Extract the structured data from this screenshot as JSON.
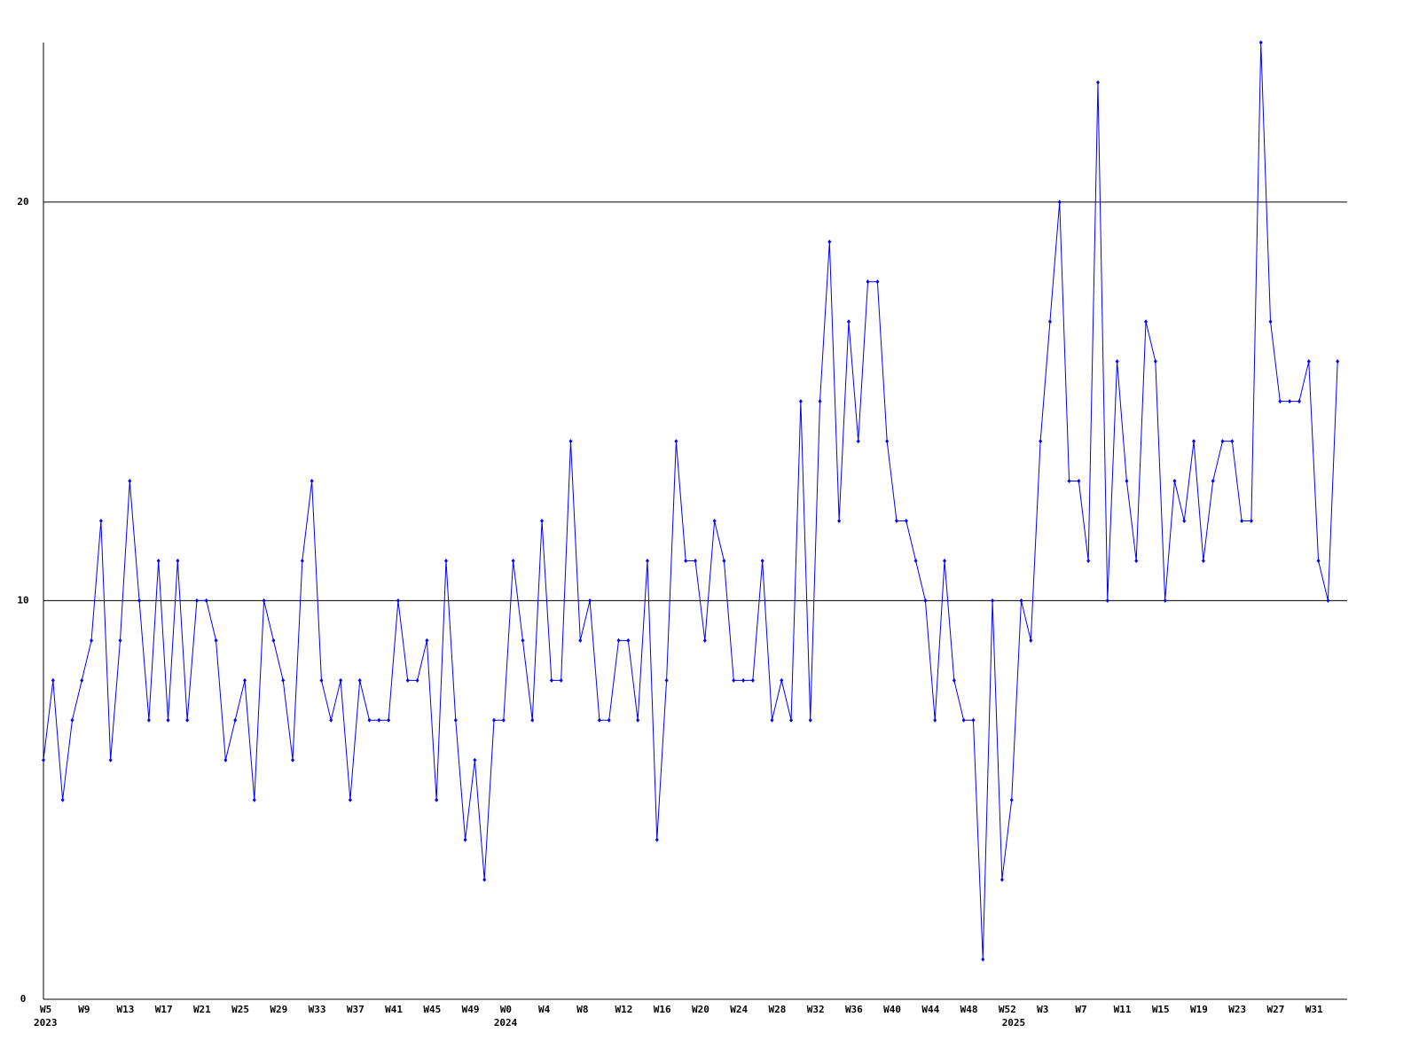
{
  "chart_data": {
    "type": "line",
    "categories": [
      "W5",
      null,
      null,
      null,
      "W9",
      null,
      null,
      null,
      "W13",
      null,
      null,
      null,
      "W17",
      null,
      null,
      null,
      "W21",
      null,
      null,
      null,
      "W25",
      null,
      null,
      null,
      "W29",
      null,
      null,
      null,
      "W33",
      null,
      null,
      null,
      "W37",
      null,
      null,
      null,
      "W41",
      null,
      null,
      null,
      "W45",
      null,
      null,
      null,
      "W49",
      null,
      null,
      null,
      "W0",
      null,
      null,
      null,
      "W4",
      null,
      null,
      null,
      "W8",
      null,
      null,
      null,
      "W12",
      null,
      null,
      null,
      "W16",
      null,
      null,
      null,
      "W20",
      null,
      null,
      null,
      "W24",
      null,
      null,
      null,
      "W28",
      null,
      null,
      null,
      "W32",
      null,
      null,
      null,
      "W36",
      null,
      null,
      null,
      "W40",
      null,
      null,
      null,
      "W44",
      null,
      null,
      null,
      "W48",
      null,
      null,
      null,
      "W52",
      null,
      null,
      null,
      "W3",
      null,
      null,
      null,
      "W7",
      null,
      null,
      null,
      "W11",
      null,
      null,
      null,
      "W15",
      null,
      null,
      null,
      "W19",
      null,
      null,
      null,
      "W23",
      null,
      null,
      null,
      "W27",
      null,
      null,
      null,
      "W31",
      null,
      null,
      null
    ],
    "groups": [
      {
        "label": "2023",
        "category": 0
      },
      {
        "label": "2024",
        "category": 48
      },
      {
        "label": "2025",
        "category": 101
      }
    ],
    "values": [
      6,
      8,
      5,
      7,
      8,
      9,
      12,
      6,
      9,
      13,
      10,
      7,
      11,
      7,
      11,
      7,
      10,
      10,
      9,
      6,
      7,
      8,
      5,
      10,
      9,
      8,
      6,
      11,
      13,
      8,
      7,
      8,
      5,
      8,
      7,
      7,
      7,
      10,
      8,
      8,
      9,
      5,
      11,
      7,
      4,
      6,
      3,
      7,
      7,
      11,
      9,
      7,
      12,
      8,
      8,
      14,
      9,
      10,
      7,
      7,
      9,
      9,
      7,
      11,
      4,
      8,
      14,
      11,
      11,
      9,
      12,
      11,
      8,
      8,
      8,
      11,
      7,
      8,
      7,
      15,
      7,
      15,
      19,
      12,
      17,
      14,
      18,
      18,
      14,
      12,
      12,
      11,
      10,
      7,
      11,
      8,
      7,
      7,
      1,
      10,
      3,
      5,
      10,
      9,
      14,
      17,
      20,
      13,
      13,
      11,
      23,
      10,
      16,
      13,
      11,
      17,
      16,
      10,
      13,
      12,
      14,
      11,
      13,
      14,
      14,
      12,
      12,
      24,
      17,
      15,
      15,
      15,
      16,
      11,
      10,
      16
    ],
    "color": "#0000ff",
    "ylim": [
      0,
      24
    ],
    "yticks": [
      0,
      10,
      20
    ],
    "grid": true
  }
}
